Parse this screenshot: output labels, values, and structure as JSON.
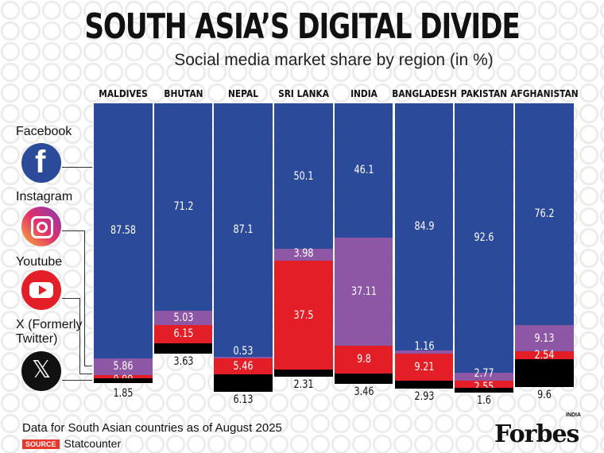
{
  "title": "SOUTH ASIA’S DIGITAL DIVIDE",
  "subtitle": "Social media market share by region (in %)",
  "footnote": "Data for South Asian countries as of August 2025",
  "source_badge": "SOURCE",
  "source": "Statcounter",
  "brand": "Forbes",
  "brand_sub": "INDIA",
  "colors": {
    "Facebook": "#2c4a9a",
    "Instagram": "#8d57a6",
    "Youtube": "#e31e26",
    "X": "#000000"
  },
  "legend": [
    {
      "name": "Facebook",
      "icon": "facebook-icon"
    },
    {
      "name": "Instagram",
      "icon": "instagram-icon"
    },
    {
      "name": "Youtube",
      "icon": "youtube-icon"
    },
    {
      "name": "X (Formerly Twitter)",
      "icon": "x-icon"
    }
  ],
  "chart_data": {
    "type": "bar",
    "stacked": true,
    "title": "SOUTH ASIA’S DIGITAL DIVIDE",
    "subtitle": "Social media market share by region (in %)",
    "categories": [
      "MALDIVES",
      "BHUTAN",
      "NEPAL",
      "SRI LANKA",
      "INDIA",
      "BANGLADESH",
      "PAKISTAN",
      "AFGHANISTAN"
    ],
    "series": [
      {
        "name": "Facebook",
        "values": [
          87.58,
          71.2,
          87.1,
          50.1,
          46.1,
          84.9,
          92.6,
          76.2
        ]
      },
      {
        "name": "Instagram",
        "values": [
          5.86,
          5.03,
          0.53,
          3.98,
          37.11,
          1.16,
          2.77,
          9.13
        ]
      },
      {
        "name": "Youtube",
        "values": [
          0.99,
          6.15,
          5.46,
          37.5,
          9.8,
          9.21,
          2.55,
          2.54
        ]
      },
      {
        "name": "X (Formerly Twitter)",
        "values": [
          1.85,
          3.63,
          6.13,
          2.31,
          3.46,
          2.93,
          1.6,
          9.6
        ]
      }
    ],
    "grid": false,
    "legend": "left"
  }
}
